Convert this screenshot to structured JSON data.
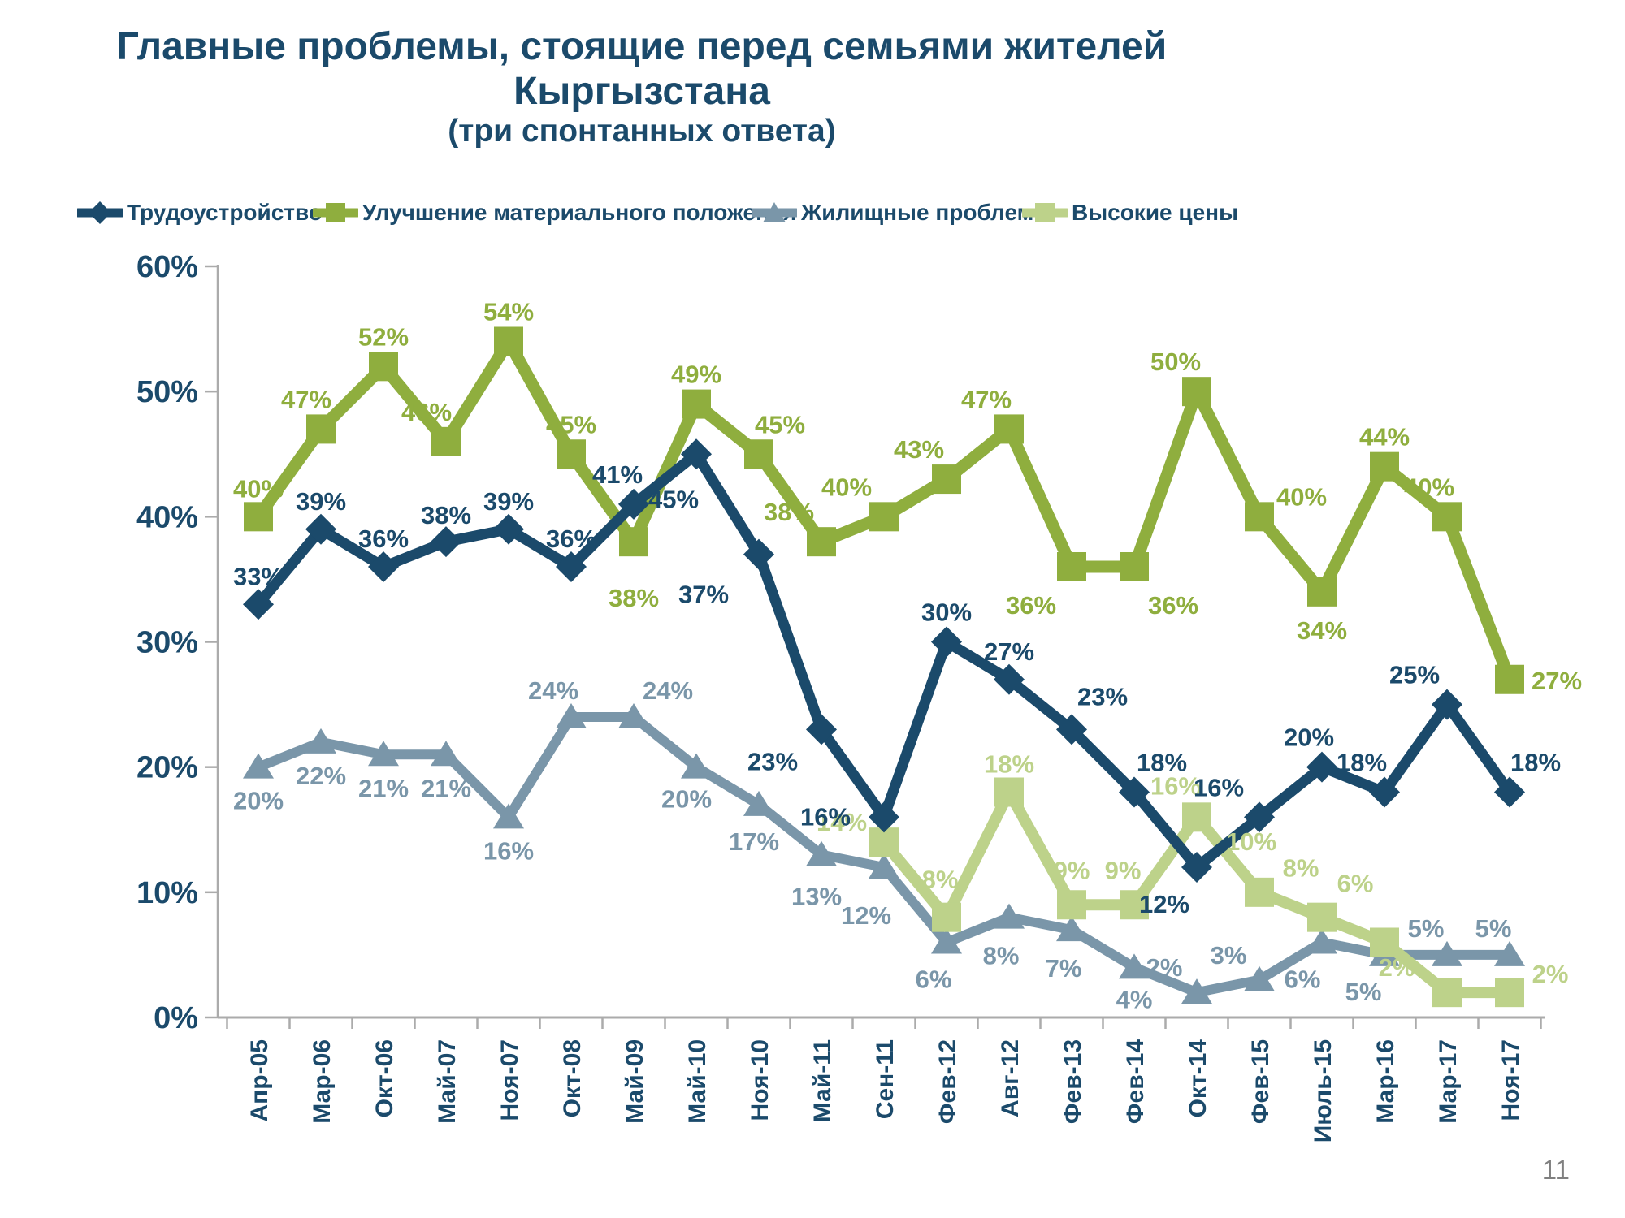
{
  "header": {
    "title": "Главные проблемы, стоящие перед семьями жителей Кыргызстана",
    "subtitle": "(три спонтанных ответа)"
  },
  "page": {
    "page_number": "11"
  },
  "colors": {
    "navy": "#1b4a6b",
    "green": "#8fae3e",
    "gray_blue": "#7a96a9",
    "light_green": "#bdd28a",
    "axis": "#ababab",
    "page_number": "#808080"
  },
  "chart_data": {
    "type": "line",
    "title": "Главные проблемы, стоящие перед семьями жителей Кыргызстана",
    "subtitle": "(три спонтанных ответа)",
    "grid": false,
    "legend_position": "top",
    "ylim": [
      0,
      60
    ],
    "ytick_labels": [
      "0%",
      "10%",
      "20%",
      "30%",
      "40%",
      "50%",
      "60%"
    ],
    "ytick_values": [
      0,
      10,
      20,
      30,
      40,
      50,
      60
    ],
    "value_suffix": "%",
    "categories": [
      "Апр-05",
      "Мар-06",
      "Окт-06",
      "Май-07",
      "Ноя-07",
      "Окт-08",
      "Май-09",
      "Май-10",
      "Ноя-10",
      "Май-11",
      "Сен-11",
      "Фев-12",
      "Авг-12",
      "Фев-13",
      "Фев-14",
      "Окт-14",
      "Фев-15",
      "Июль-15",
      "Мар-16",
      "Мар-17",
      "Ноя-17"
    ],
    "series": [
      {
        "name": "Трудоустройство",
        "color": "#1b4a6b",
        "marker": "diamond",
        "line_width": 13,
        "values": [
          33,
          39,
          36,
          38,
          39,
          36,
          41,
          45,
          37,
          23,
          16,
          30,
          27,
          23,
          18,
          12,
          16,
          20,
          18,
          25,
          18
        ],
        "label_offsets": [
          [
            0,
            -24
          ],
          [
            0,
            -24
          ],
          [
            0,
            -24
          ],
          [
            0,
            -22
          ],
          [
            0,
            -24
          ],
          [
            0,
            -24
          ],
          [
            -20,
            -26
          ],
          [
            -28,
            66
          ],
          [
            -68,
            60
          ],
          [
            -60,
            50
          ],
          [
            -72,
            10
          ],
          [
            0,
            -26
          ],
          [
            0,
            -24
          ],
          [
            38,
            -30
          ],
          [
            34,
            -26
          ],
          [
            -40,
            56
          ],
          [
            -50,
            -26
          ],
          [
            -16,
            -26
          ],
          [
            -28,
            -26
          ],
          [
            -40,
            -26
          ],
          [
            32,
            -26
          ]
        ]
      },
      {
        "name": "Улучшение материального положения",
        "color": "#8fae3e",
        "marker": "square",
        "line_width": 15,
        "values": [
          40,
          47,
          52,
          46,
          54,
          45,
          38,
          49,
          45,
          38,
          40,
          43,
          47,
          36,
          36,
          50,
          40,
          34,
          44,
          40,
          27
        ],
        "label_offsets": [
          [
            0,
            -24
          ],
          [
            -18,
            -26
          ],
          [
            0,
            -26
          ],
          [
            -24,
            -26
          ],
          [
            0,
            -26
          ],
          [
            0,
            -26
          ],
          [
            0,
            80
          ],
          [
            0,
            -26
          ],
          [
            26,
            -26
          ],
          [
            -40,
            -26
          ],
          [
            -46,
            -26
          ],
          [
            -34,
            -26
          ],
          [
            -28,
            -26
          ],
          [
            -50,
            58
          ],
          [
            48,
            58
          ],
          [
            -26,
            -26
          ],
          [
            52,
            -14
          ],
          [
            0,
            58
          ],
          [
            0,
            -26
          ],
          [
            -22,
            -26
          ],
          [
            58,
            12
          ]
        ]
      },
      {
        "name": "Жилищные проблемы",
        "color": "#7a96a9",
        "marker": "triangle",
        "line_width": 12,
        "values": [
          20,
          22,
          21,
          21,
          16,
          24,
          24,
          20,
          17,
          13,
          12,
          6,
          8,
          7,
          4,
          2,
          3,
          6,
          5,
          5,
          5
        ],
        "label_offsets": [
          [
            0,
            52
          ],
          [
            0,
            52
          ],
          [
            0,
            52
          ],
          [
            0,
            52
          ],
          [
            0,
            52
          ],
          [
            -22,
            -22
          ],
          [
            42,
            -22
          ],
          [
            -12,
            50
          ],
          [
            -6,
            56
          ],
          [
            -6,
            62
          ],
          [
            -22,
            70
          ],
          [
            -16,
            56
          ],
          [
            -10,
            58
          ],
          [
            -10,
            58
          ],
          [
            0,
            50
          ],
          [
            -40,
            -20
          ],
          [
            -38,
            -20
          ],
          [
            -24,
            56
          ],
          [
            -26,
            56
          ],
          [
            -26,
            -22
          ],
          [
            -20,
            -22
          ]
        ]
      },
      {
        "name": "Высокие цены",
        "color": "#bdd28a",
        "marker": "square",
        "line_width": 14,
        "values": [
          null,
          null,
          null,
          null,
          null,
          null,
          null,
          null,
          null,
          null,
          14,
          8,
          18,
          9,
          9,
          16,
          10,
          8,
          6,
          2,
          2
        ],
        "label_offsets": [
          null,
          null,
          null,
          null,
          null,
          null,
          null,
          null,
          null,
          null,
          [
            -52,
            -14
          ],
          [
            -8,
            -36
          ],
          [
            0,
            -24
          ],
          [
            0,
            -32
          ],
          [
            -14,
            -32
          ],
          [
            -26,
            -28
          ],
          [
            -10,
            -52
          ],
          [
            -26,
            -50
          ],
          [
            -36,
            -62
          ],
          [
            -62,
            -20
          ],
          [
            50,
            -12
          ]
        ]
      }
    ]
  }
}
